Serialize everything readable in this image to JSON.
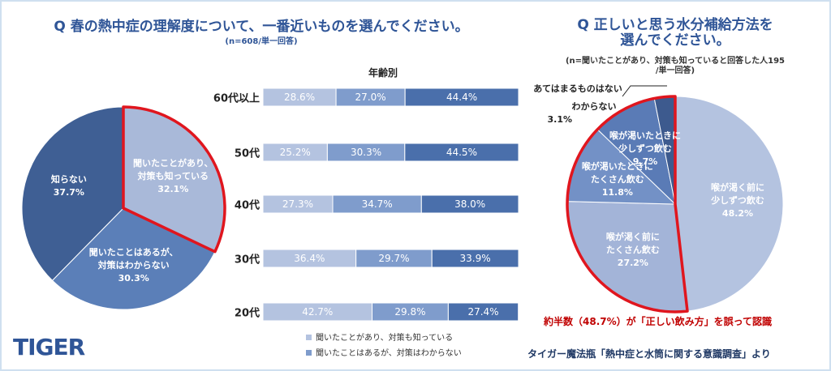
{
  "chart_data": [
    {
      "type": "pie",
      "title": "Q 春の熱中症の理解度について、一番近いものを選んでください。",
      "subtitle": "(n=608/単一回答)",
      "categories": [
        "聞いたことがあり、\n対策も知っている",
        "聞いたことはあるが、\n対策はわからない",
        "知らない"
      ],
      "values": [
        32.1,
        30.3,
        37.7
      ],
      "value_labels": [
        "32.1%",
        "30.3%",
        "37.7%"
      ],
      "colors": [
        "#a9b9d9",
        "#5b7fb8",
        "#3f5f94"
      ],
      "highlight": [
        0
      ],
      "highlight_color": "#e0161e"
    },
    {
      "type": "stacked-bar",
      "title": "年齢別",
      "categories": [
        "60代以上",
        "50代",
        "40代",
        "30代",
        "20代"
      ],
      "xlim": [
        0,
        100
      ],
      "series": [
        {
          "name": "聞いたことがあり、対策も知っている",
          "color": "#b4c3e0",
          "values": [
            28.6,
            25.2,
            27.3,
            36.4,
            42.7
          ],
          "value_labels": [
            "28.6%",
            "25.2%",
            "27.3%",
            "36.4%",
            "42.7%"
          ]
        },
        {
          "name": "聞いたことはあるが、対策はわからない",
          "color": "#7f9ccc",
          "values": [
            27.0,
            30.3,
            34.7,
            29.7,
            29.8
          ],
          "value_labels": [
            "27.0%",
            "30.3%",
            "34.7%",
            "29.7%",
            "29.8%"
          ]
        },
        {
          "color": "#4a6fab",
          "values": [
            44.4,
            44.5,
            38.0,
            33.9,
            27.4
          ],
          "value_labels": [
            "44.4%",
            "44.5%",
            "38.0%",
            "33.9%",
            "27.4%"
          ]
        }
      ]
    },
    {
      "type": "pie",
      "title": "Q 正しいと思う水分補給方法を\n選んでください。",
      "subtitle": "(n=聞いたことがあり、対策も知っていると回答した人195\n/単一回答)",
      "categories": [
        "喉が渇く前に\n少しずつ飲む",
        "喉が渇く前に\nたくさん飲む",
        "喉が渇いたときに\nたくさん飲む",
        "喉が渇いたときに\n少しずつ飲む",
        "わからない",
        "あてはまるものはない"
      ],
      "values": [
        48.2,
        27.2,
        11.8,
        9.7,
        3.1,
        null
      ],
      "value_labels": [
        "48.2%",
        "27.2%",
        "11.8%",
        "9.7%",
        "3.1%",
        null
      ],
      "colors": [
        "#b4c3e0",
        "#a3b4d8",
        "#7391c6",
        "#5a7bb6",
        "#3d5a8e",
        "#2f4a78"
      ],
      "highlight": [
        1,
        2,
        3,
        4
      ],
      "highlight_color": "#e0161e",
      "annotation": "約半数（48.7%）が「正しい飲み方」を誤って認識"
    }
  ],
  "source": "タイガー魔法瓶「熱中症と水筒に関する意識調査」より",
  "logo": "TIGER"
}
